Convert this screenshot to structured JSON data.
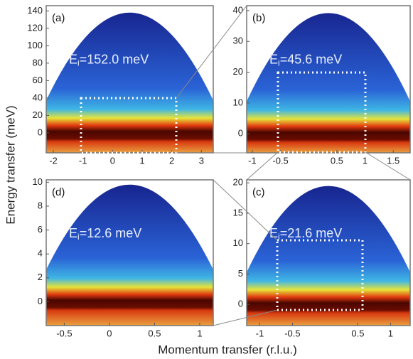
{
  "ylabel": "Energy transfer (meV)",
  "xlabel": "Momentum transfer (r.l.u.)",
  "chart_data": [
    {
      "type": "heatmap",
      "panel_label": "(a)",
      "annotation_symbol": "E",
      "annotation_subscript": "i",
      "annotation_text": "=152.0 meV",
      "xlim": [
        -2.24,
        3.4
      ],
      "xticks": [
        -2,
        -1,
        0,
        1,
        2,
        3
      ],
      "ylim": [
        -23,
        146
      ],
      "yticks": [
        0,
        20,
        40,
        60,
        80,
        100,
        120,
        140
      ]
    },
    {
      "type": "heatmap",
      "panel_label": "(b)",
      "annotation_symbol": "E",
      "annotation_subscript": "i",
      "annotation_text": "=45.6 meV",
      "xlim": [
        -1.1,
        1.8
      ],
      "xticks": [
        -1,
        -0.5,
        0.5,
        1,
        1.5
      ],
      "ylim": [
        -6.2,
        41.6
      ],
      "yticks": [
        0,
        10,
        20,
        30,
        40
      ]
    },
    {
      "type": "heatmap",
      "panel_label": "(c)",
      "annotation_symbol": "E",
      "annotation_subscript": "i",
      "annotation_text": "=21.6 meV",
      "xlim": [
        -1.2,
        1.3
      ],
      "xticks": [
        -1,
        -0.5,
        0.5,
        1
      ],
      "ylim": [
        -3.5,
        20.5
      ],
      "yticks": [
        0,
        5,
        10,
        15,
        20
      ]
    },
    {
      "type": "heatmap",
      "panel_label": "(d)",
      "annotation_symbol": "E",
      "annotation_subscript": "i",
      "annotation_text": "=12.6 meV",
      "xlim": [
        -0.7,
        1.15
      ],
      "xticks": [
        -0.5,
        0,
        0.5,
        1
      ],
      "ylim": [
        -2,
        10.2
      ],
      "yticks": [
        0,
        2,
        4,
        6,
        8,
        10
      ]
    }
  ]
}
